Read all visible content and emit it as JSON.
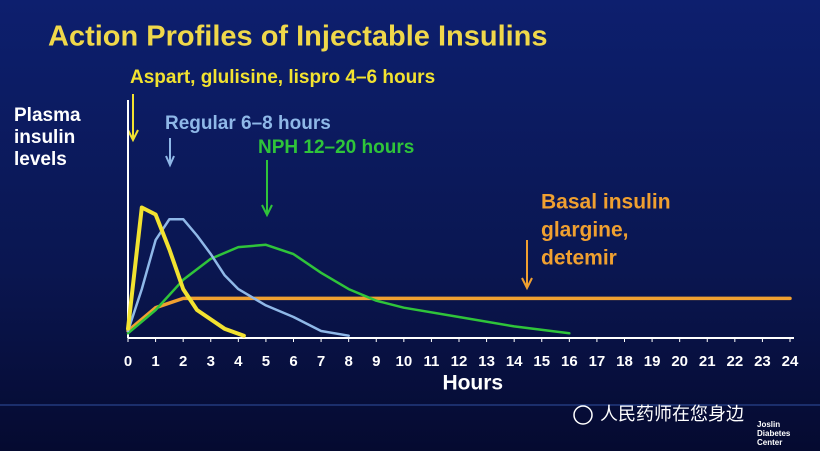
{
  "chart_data": {
    "type": "line",
    "title": "Action Profiles of Injectable Insulins",
    "y_label_lines": [
      "Plasma",
      "insulin",
      "levels"
    ],
    "x_label": "Hours",
    "xlim": [
      0,
      24
    ],
    "xticks": [
      0,
      1,
      2,
      3,
      4,
      5,
      6,
      7,
      8,
      9,
      10,
      11,
      12,
      13,
      14,
      15,
      16,
      17,
      18,
      19,
      20,
      21,
      22,
      23,
      24
    ],
    "ylim": [
      0,
      100
    ],
    "series": [
      {
        "name": "Aspart, glulisine, lispro 4–6 hours",
        "color": "#f2e230",
        "x": [
          0,
          0.5,
          1,
          1.5,
          2,
          2.5,
          3,
          3.5,
          4.2
        ],
        "values": [
          4,
          56,
          53,
          38,
          21,
          12,
          8,
          4,
          1
        ]
      },
      {
        "name": "Regular 6–8 hours",
        "color": "#8fb8e8",
        "x": [
          0,
          0.5,
          1,
          1.5,
          2,
          2.5,
          3,
          3.5,
          4,
          5,
          6,
          7,
          8
        ],
        "values": [
          3,
          21,
          42,
          51,
          51,
          44,
          36,
          27,
          21,
          14,
          9,
          3,
          1
        ]
      },
      {
        "name": "NPH 12–20 hours",
        "color": "#2fc43a",
        "x": [
          0,
          1,
          2,
          3,
          4,
          5,
          6,
          7,
          8,
          9,
          10,
          12,
          14,
          16
        ],
        "values": [
          2,
          12,
          25,
          34,
          39,
          40,
          36,
          28,
          21,
          16,
          13,
          9,
          5,
          2
        ]
      },
      {
        "name": "Basal insulin glargine, detemir",
        "name_lines": [
          "Basal insulin",
          "glargine,",
          "detemir"
        ],
        "color": "#f0a030",
        "x": [
          0,
          1,
          2,
          3,
          24
        ],
        "values": [
          3,
          13,
          17,
          17,
          17
        ]
      }
    ]
  },
  "watermark": "人民药师在您身边",
  "logo_lines": [
    "Joslin",
    "Diabetes",
    "Center"
  ]
}
